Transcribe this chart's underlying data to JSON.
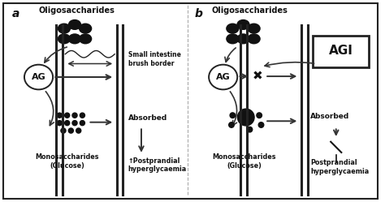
{
  "bg_color": "#ffffff",
  "border_color": "#222222",
  "title_a": "Oligosaccharides",
  "title_b": "Oligosaccharides",
  "label_a": "a",
  "label_b": "b",
  "ag_label": "AG",
  "agi_label": "AGI",
  "absorbed_label": "Absorbed",
  "postprandial_a": "↑Postprandial\nhyperglycaemia",
  "postprandial_b": "Postprandial\nhyperglycaemia",
  "mono_label": "Monosaccharides\n(Glucose)",
  "brush_border_label": "Small intestine\nbrush border",
  "wall_color": "#222222",
  "arrow_color": "#333333",
  "circle_fill": "#111111",
  "text_color": "#111111",
  "figsize": [
    4.74,
    2.49
  ],
  "dpi": 100
}
